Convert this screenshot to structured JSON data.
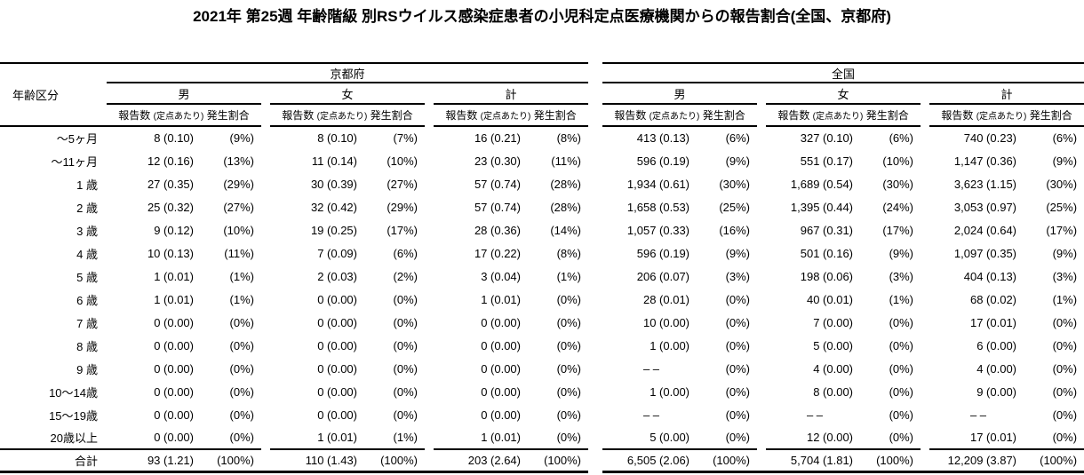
{
  "title": "2021年 第25週 年齢階級 別RSウイルス感染症患者の小児科定点医療機関からの報告割合(全国、京都府)",
  "chart_data": {
    "type": "table",
    "title": "2021年 第25週 年齢階級 別RSウイルス感染症患者の小児科定点医療機関からの報告割合(全国、京都府)",
    "row_header": "年齢区分",
    "sections": [
      "京都府",
      "全国"
    ],
    "sex_groups": [
      "男",
      "女",
      "計"
    ],
    "column_subheaders": [
      "報告数",
      "(定点あたり)",
      "発生割合"
    ],
    "columns_per_group": [
      "報告数 (定点あたり)",
      "発生割合"
    ],
    "rows": [
      {
        "age": "〜5ヶ月",
        "cells": [
          [
            "8 (0.10)",
            "(9%)"
          ],
          [
            "8 (0.10)",
            "(7%)"
          ],
          [
            "16 (0.21)",
            "(8%)"
          ],
          [
            "413 (0.13)",
            "(6%)"
          ],
          [
            "327 (0.10)",
            "(6%)"
          ],
          [
            "740 (0.23)",
            "(6%)"
          ]
        ]
      },
      {
        "age": "〜11ヶ月",
        "cells": [
          [
            "12 (0.16)",
            "(13%)"
          ],
          [
            "11 (0.14)",
            "(10%)"
          ],
          [
            "23 (0.30)",
            "(11%)"
          ],
          [
            "596 (0.19)",
            "(9%)"
          ],
          [
            "551 (0.17)",
            "(10%)"
          ],
          [
            "1,147 (0.36)",
            "(9%)"
          ]
        ]
      },
      {
        "age": "1 歳",
        "cells": [
          [
            "27 (0.35)",
            "(29%)"
          ],
          [
            "30 (0.39)",
            "(27%)"
          ],
          [
            "57 (0.74)",
            "(28%)"
          ],
          [
            "1,934 (0.61)",
            "(30%)"
          ],
          [
            "1,689 (0.54)",
            "(30%)"
          ],
          [
            "3,623 (1.15)",
            "(30%)"
          ]
        ]
      },
      {
        "age": "2 歳",
        "cells": [
          [
            "25 (0.32)",
            "(27%)"
          ],
          [
            "32 (0.42)",
            "(29%)"
          ],
          [
            "57 (0.74)",
            "(28%)"
          ],
          [
            "1,658 (0.53)",
            "(25%)"
          ],
          [
            "1,395 (0.44)",
            "(24%)"
          ],
          [
            "3,053 (0.97)",
            "(25%)"
          ]
        ]
      },
      {
        "age": "3 歳",
        "cells": [
          [
            "9 (0.12)",
            "(10%)"
          ],
          [
            "19 (0.25)",
            "(17%)"
          ],
          [
            "28 (0.36)",
            "(14%)"
          ],
          [
            "1,057 (0.33)",
            "(16%)"
          ],
          [
            "967 (0.31)",
            "(17%)"
          ],
          [
            "2,024 (0.64)",
            "(17%)"
          ]
        ]
      },
      {
        "age": "4 歳",
        "cells": [
          [
            "10 (0.13)",
            "(11%)"
          ],
          [
            "7 (0.09)",
            "(6%)"
          ],
          [
            "17 (0.22)",
            "(8%)"
          ],
          [
            "596 (0.19)",
            "(9%)"
          ],
          [
            "501 (0.16)",
            "(9%)"
          ],
          [
            "1,097 (0.35)",
            "(9%)"
          ]
        ]
      },
      {
        "age": "5 歳",
        "cells": [
          [
            "1 (0.01)",
            "(1%)"
          ],
          [
            "2 (0.03)",
            "(2%)"
          ],
          [
            "3 (0.04)",
            "(1%)"
          ],
          [
            "206 (0.07)",
            "(3%)"
          ],
          [
            "198 (0.06)",
            "(3%)"
          ],
          [
            "404 (0.13)",
            "(3%)"
          ]
        ]
      },
      {
        "age": "6 歳",
        "cells": [
          [
            "1 (0.01)",
            "(1%)"
          ],
          [
            "0 (0.00)",
            "(0%)"
          ],
          [
            "1 (0.01)",
            "(0%)"
          ],
          [
            "28 (0.01)",
            "(0%)"
          ],
          [
            "40 (0.01)",
            "(1%)"
          ],
          [
            "68 (0.02)",
            "(1%)"
          ]
        ]
      },
      {
        "age": "7 歳",
        "cells": [
          [
            "0 (0.00)",
            "(0%)"
          ],
          [
            "0 (0.00)",
            "(0%)"
          ],
          [
            "0 (0.00)",
            "(0%)"
          ],
          [
            "10 (0.00)",
            "(0%)"
          ],
          [
            "7 (0.00)",
            "(0%)"
          ],
          [
            "17 (0.01)",
            "(0%)"
          ]
        ]
      },
      {
        "age": "8 歳",
        "cells": [
          [
            "0 (0.00)",
            "(0%)"
          ],
          [
            "0 (0.00)",
            "(0%)"
          ],
          [
            "0 (0.00)",
            "(0%)"
          ],
          [
            "1 (0.00)",
            "(0%)"
          ],
          [
            "5 (0.00)",
            "(0%)"
          ],
          [
            "6 (0.00)",
            "(0%)"
          ]
        ]
      },
      {
        "age": "9 歳",
        "cells": [
          [
            "0 (0.00)",
            "(0%)"
          ],
          [
            "0 (0.00)",
            "(0%)"
          ],
          [
            "0 (0.00)",
            "(0%)"
          ],
          [
            "– –",
            "(0%)"
          ],
          [
            "4 (0.00)",
            "(0%)"
          ],
          [
            "4 (0.00)",
            "(0%)"
          ]
        ]
      },
      {
        "age": "10〜14歳",
        "cells": [
          [
            "0 (0.00)",
            "(0%)"
          ],
          [
            "0 (0.00)",
            "(0%)"
          ],
          [
            "0 (0.00)",
            "(0%)"
          ],
          [
            "1 (0.00)",
            "(0%)"
          ],
          [
            "8 (0.00)",
            "(0%)"
          ],
          [
            "9 (0.00)",
            "(0%)"
          ]
        ]
      },
      {
        "age": "15〜19歳",
        "cells": [
          [
            "0 (0.00)",
            "(0%)"
          ],
          [
            "0 (0.00)",
            "(0%)"
          ],
          [
            "0 (0.00)",
            "(0%)"
          ],
          [
            "– –",
            "(0%)"
          ],
          [
            "– –",
            "(0%)"
          ],
          [
            "– –",
            "(0%)"
          ]
        ]
      },
      {
        "age": "20歳以上",
        "cells": [
          [
            "0 (0.00)",
            "(0%)"
          ],
          [
            "1 (0.01)",
            "(1%)"
          ],
          [
            "1 (0.01)",
            "(0%)"
          ],
          [
            "5 (0.00)",
            "(0%)"
          ],
          [
            "12 (0.00)",
            "(0%)"
          ],
          [
            "17 (0.01)",
            "(0%)"
          ]
        ]
      }
    ],
    "total_row": {
      "age": "合計",
      "cells": [
        [
          "93 (1.21)",
          "(100%)"
        ],
        [
          "110 (1.43)",
          "(100%)"
        ],
        [
          "203 (2.64)",
          "(100%)"
        ],
        [
          "6,505 (2.06)",
          "(100%)"
        ],
        [
          "5,704 (1.81)",
          "(100%)"
        ],
        [
          "12,209 (3.87)",
          "(100%)"
        ]
      ]
    }
  }
}
